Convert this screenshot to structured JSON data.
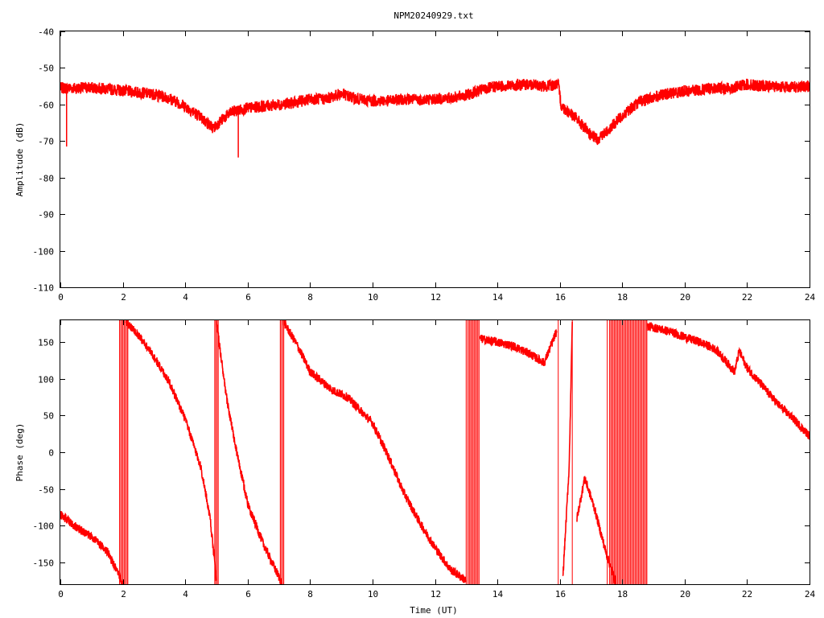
{
  "chart_data": [
    {
      "type": "line",
      "title": "NPM20240929.txt",
      "xlabel": "",
      "ylabel": "Amplitude (dB)",
      "xlim": [
        0,
        24
      ],
      "ylim": [
        -110,
        -40
      ],
      "xticks": [
        "0",
        "2",
        "4",
        "6",
        "8",
        "10",
        "12",
        "14",
        "16",
        "18",
        "20",
        "22",
        "24"
      ],
      "yticks": [
        "-40",
        "-50",
        "-60",
        "-70",
        "-80",
        "-90",
        "-100",
        "-110"
      ],
      "grid": false,
      "series_color": "#ff0000",
      "band_width": 1.6,
      "x": [
        0,
        0.5,
        1,
        1.5,
        2,
        2.5,
        3,
        3.5,
        4,
        4.5,
        4.9,
        5.2,
        5.5,
        6,
        6.5,
        7,
        7.5,
        8,
        8.5,
        9,
        9.5,
        10,
        10.5,
        11,
        11.5,
        12,
        12.5,
        13,
        13.5,
        14,
        14.5,
        15,
        15.5,
        15.95,
        16.05,
        16.5,
        17,
        17.2,
        17.5,
        18,
        18.5,
        19,
        19.5,
        20,
        20.5,
        21,
        21.5,
        22,
        22.5,
        23,
        23.5,
        24
      ],
      "y": [
        -55.5,
        -55.5,
        -55.4,
        -55.8,
        -56.2,
        -56.7,
        -57.2,
        -58.3,
        -60.5,
        -63.5,
        -66.5,
        -64,
        -62,
        -61,
        -60.5,
        -60,
        -59.5,
        -58.5,
        -58.5,
        -57,
        -58.5,
        -59,
        -59,
        -58.5,
        -58.7,
        -58.5,
        -58.2,
        -57.5,
        -56,
        -55,
        -54.8,
        -54.5,
        -55,
        -54.5,
        -60.5,
        -63.5,
        -68.5,
        -69.5,
        -67.5,
        -63,
        -59.5,
        -58,
        -57,
        -56.3,
        -56,
        -55.5,
        -55.5,
        -54.5,
        -55,
        -55,
        -55.2,
        -55
      ],
      "spikes": [
        {
          "x": 0.2,
          "y": -71.5
        },
        {
          "x": 5.7,
          "y": -74.5
        }
      ]
    },
    {
      "type": "line",
      "title": "",
      "xlabel": "Time (UT)",
      "ylabel": "Phase (deg)",
      "xlim": [
        0,
        24
      ],
      "ylim": [
        -180,
        180
      ],
      "xticks": [
        "0",
        "2",
        "4",
        "6",
        "8",
        "10",
        "12",
        "14",
        "16",
        "18",
        "20",
        "22",
        "24"
      ],
      "yticks": [
        "150",
        "100",
        "50",
        "0",
        "-50",
        "-100",
        "-150"
      ],
      "grid": false,
      "series_color": "#ff0000",
      "band_width": 6,
      "segments": [
        {
          "x": [
            0,
            0.3,
            0.6,
            1,
            1.5,
            1.9,
            2.0
          ],
          "y": [
            -85,
            -95,
            -105,
            -115,
            -135,
            -170,
            -178
          ]
        },
        {
          "x": [
            2.1,
            2.5,
            3,
            3.5,
            4,
            4.5,
            4.8,
            5.0
          ],
          "y": [
            178,
            160,
            130,
            95,
            45,
            -20,
            -90,
            -175
          ]
        },
        {
          "x": [
            5.0,
            5.3,
            5.6,
            6,
            6.5,
            7.0,
            7.1
          ],
          "y": [
            178,
            80,
            10,
            -70,
            -125,
            -170,
            -178
          ]
        },
        {
          "x": [
            7.15,
            7.6,
            8,
            8.7,
            9.2,
            10,
            10.5,
            11,
            11.5,
            12,
            12.5,
            13.0
          ],
          "y": [
            178,
            145,
            110,
            85,
            75,
            40,
            -5,
            -55,
            -95,
            -130,
            -160,
            -175
          ]
        },
        {
          "x": [
            13.45,
            14,
            14.5,
            15,
            15.5,
            15.9
          ],
          "y": [
            155,
            150,
            145,
            135,
            122,
            165
          ]
        },
        {
          "x": [
            16.1,
            16.3,
            16.4
          ],
          "y": [
            -170,
            -20,
            178
          ]
        },
        {
          "x": [
            16.55,
            16.8,
            17.1,
            17.5,
            17.8
          ],
          "y": [
            -90,
            -35,
            -75,
            -140,
            -178
          ]
        },
        {
          "x": [
            18.8,
            19.5,
            20,
            20.5,
            21,
            21.6,
            21.75,
            22,
            22.5,
            23,
            23.5,
            24
          ],
          "y": [
            172,
            165,
            157,
            150,
            140,
            110,
            138,
            115,
            90,
            65,
            45,
            22
          ]
        }
      ],
      "wrap_bands": [
        [
          1.9,
          2.2
        ],
        [
          4.95,
          5.08
        ],
        [
          7.05,
          7.2
        ],
        [
          13.1,
          13.45
        ],
        [
          17.6,
          18.8
        ]
      ],
      "wrap_lines": [
        13.0,
        13.05,
        15.95,
        16.4,
        17.52
      ]
    }
  ]
}
